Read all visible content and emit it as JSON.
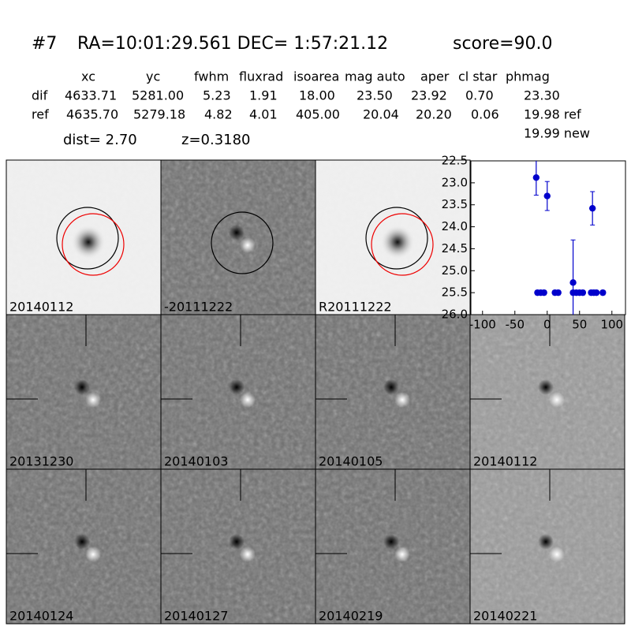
{
  "header": {
    "id": "#7",
    "coords": "RA=10:01:29.561 DEC= 1:57:21.12",
    "score": "score=90.0"
  },
  "table": {
    "columns": [
      "xc",
      "yc",
      "fwhm",
      "fluxrad",
      "isoarea",
      "mag auto",
      "aper",
      "cl star",
      "phmag"
    ],
    "rows": [
      [
        "dif",
        "4633.71",
        "5281.00",
        "5.23",
        "1.91",
        "18.00",
        "23.50",
        "23.92",
        "0.70",
        "23.30"
      ],
      [
        "ref",
        "4635.70",
        "5279.18",
        "4.82",
        "4.01",
        "405.00",
        "20.04",
        "20.20",
        "0.06",
        "19.98 ref"
      ]
    ],
    "extra": "19.99 new"
  },
  "dist": "dist=  2.70",
  "z": "z=0.3180",
  "panels": [
    {
      "label": "20140112"
    },
    {
      "label": "-20111222"
    },
    {
      "label": "R20111222"
    },
    {
      "label": "20131230"
    },
    {
      "label": "20140103"
    },
    {
      "label": "20140105"
    },
    {
      "label": "20140112",
      "color": "#ff0000"
    },
    {
      "label": "20140124"
    },
    {
      "label": "20140127"
    },
    {
      "label": "20140219"
    },
    {
      "label": "20140221"
    }
  ],
  "chart_data": {
    "type": "errorbar",
    "color": "#0000cc",
    "y_inverted": true,
    "xlim": [
      -118,
      121
    ],
    "xticks": [
      -100,
      -50,
      0,
      50,
      100
    ],
    "ylim": [
      22.5,
      26.0
    ],
    "yticks": [
      22.5,
      {
        "value": 23,
        "label": "23.0"
      },
      23.5,
      {
        "value": 24,
        "label": "24.0"
      },
      24.5,
      {
        "value": 25,
        "label": "25.0"
      },
      25.5,
      {
        "value": 26,
        "label": "26.0"
      }
    ],
    "x": [
      -17,
      0,
      70,
      40,
      -15,
      -10,
      -5,
      12,
      17,
      40,
      45,
      50,
      55,
      68,
      72,
      76,
      86
    ],
    "values": [
      22.88,
      23.3,
      23.58,
      25.27,
      25.5,
      25.5,
      25.5,
      25.5,
      25.5,
      25.5,
      25.5,
      25.5,
      25.5,
      25.5,
      25.5,
      25.5,
      25.5
    ],
    "errors": [
      0.4,
      0.33,
      0.38,
      0.97,
      0.05,
      0.05,
      0.05,
      0.05,
      0.05,
      0.05,
      0.05,
      0.05,
      0.05,
      0.05,
      0.05,
      0.05,
      0.05
    ]
  }
}
